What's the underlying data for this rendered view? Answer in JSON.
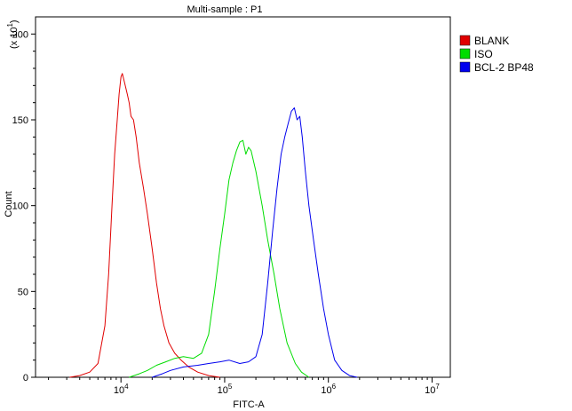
{
  "chart_data": {
    "type": "line",
    "title": "Multi-sample : P1",
    "xlabel": "FITC-A",
    "ylabel": "Count",
    "y_multiplier_label": "(x 10",
    "y_multiplier_exp": "1",
    "x_scale": "log",
    "xlim": [
      1500,
      15000000
    ],
    "ylim": [
      0,
      210
    ],
    "x_ticks": [
      {
        "value": 10000,
        "base": "10",
        "exp": "4"
      },
      {
        "value": 100000,
        "base": "10",
        "exp": "5"
      },
      {
        "value": 1000000,
        "base": "10",
        "exp": "6"
      },
      {
        "value": 10000000,
        "base": "10",
        "exp": "7"
      }
    ],
    "y_ticks": [
      0,
      50,
      100,
      150,
      200
    ],
    "legend_position": "top-right",
    "series": [
      {
        "name": "BLANK",
        "color": "#e00000",
        "points": [
          [
            3200,
            0
          ],
          [
            4000,
            1
          ],
          [
            5000,
            3
          ],
          [
            6000,
            8
          ],
          [
            7000,
            30
          ],
          [
            7600,
            60
          ],
          [
            8200,
            100
          ],
          [
            8700,
            130
          ],
          [
            9200,
            150
          ],
          [
            9600,
            165
          ],
          [
            10000,
            175
          ],
          [
            10300,
            177
          ],
          [
            10800,
            172
          ],
          [
            11500,
            165
          ],
          [
            12000,
            160
          ],
          [
            12500,
            152
          ],
          [
            13200,
            150
          ],
          [
            14000,
            140
          ],
          [
            15000,
            125
          ],
          [
            16500,
            110
          ],
          [
            18000,
            95
          ],
          [
            20000,
            75
          ],
          [
            22000,
            55
          ],
          [
            24000,
            40
          ],
          [
            26000,
            30
          ],
          [
            29000,
            20
          ],
          [
            33000,
            14
          ],
          [
            38000,
            10
          ],
          [
            45000,
            6
          ],
          [
            55000,
            3
          ],
          [
            70000,
            1
          ],
          [
            90000,
            0
          ]
        ]
      },
      {
        "name": "ISO",
        "color": "#00dd00",
        "points": [
          [
            12000,
            0
          ],
          [
            15000,
            2
          ],
          [
            18000,
            4
          ],
          [
            22000,
            7
          ],
          [
            27000,
            9
          ],
          [
            33000,
            11
          ],
          [
            40000,
            12
          ],
          [
            50000,
            11
          ],
          [
            60000,
            14
          ],
          [
            70000,
            25
          ],
          [
            80000,
            50
          ],
          [
            90000,
            75
          ],
          [
            100000,
            95
          ],
          [
            110000,
            115
          ],
          [
            120000,
            125
          ],
          [
            130000,
            132
          ],
          [
            140000,
            137
          ],
          [
            150000,
            138
          ],
          [
            160000,
            130
          ],
          [
            170000,
            134
          ],
          [
            180000,
            132
          ],
          [
            200000,
            120
          ],
          [
            230000,
            100
          ],
          [
            260000,
            80
          ],
          [
            300000,
            60
          ],
          [
            340000,
            40
          ],
          [
            400000,
            20
          ],
          [
            480000,
            8
          ],
          [
            550000,
            3
          ],
          [
            650000,
            0
          ]
        ]
      },
      {
        "name": "BCL-2 BP48",
        "color": "#0000ee",
        "points": [
          [
            20000,
            0
          ],
          [
            25000,
            2
          ],
          [
            30000,
            4
          ],
          [
            40000,
            6
          ],
          [
            55000,
            7
          ],
          [
            70000,
            8
          ],
          [
            90000,
            9
          ],
          [
            110000,
            10
          ],
          [
            140000,
            8
          ],
          [
            170000,
            9
          ],
          [
            200000,
            12
          ],
          [
            230000,
            25
          ],
          [
            260000,
            55
          ],
          [
            290000,
            85
          ],
          [
            320000,
            110
          ],
          [
            350000,
            130
          ],
          [
            380000,
            140
          ],
          [
            410000,
            148
          ],
          [
            440000,
            155
          ],
          [
            470000,
            157
          ],
          [
            500000,
            150
          ],
          [
            530000,
            152
          ],
          [
            560000,
            140
          ],
          [
            600000,
            120
          ],
          [
            650000,
            100
          ],
          [
            720000,
            80
          ],
          [
            800000,
            60
          ],
          [
            900000,
            40
          ],
          [
            1000000,
            25
          ],
          [
            1150000,
            10
          ],
          [
            1350000,
            4
          ],
          [
            1600000,
            1
          ],
          [
            1900000,
            0
          ]
        ]
      }
    ]
  }
}
